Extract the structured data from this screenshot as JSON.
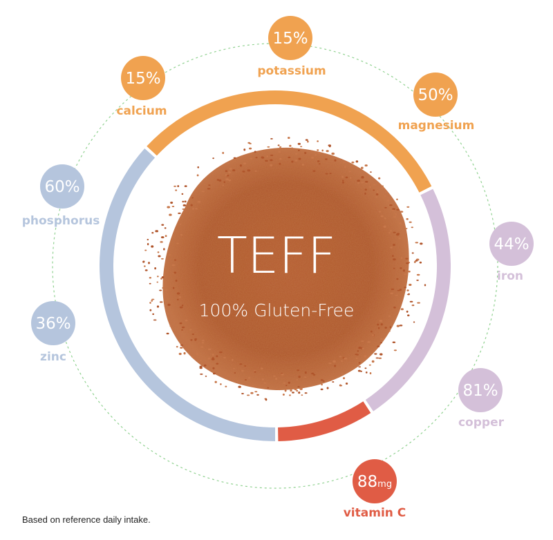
{
  "center": {
    "title": "TEFF",
    "subtitle": "100% Gluten-Free"
  },
  "nutrients": [
    {
      "id": "potassium",
      "value": "15%",
      "label": "potassium",
      "color": "#f0a250"
    },
    {
      "id": "magnesium",
      "value": "50%",
      "label": "magnesium",
      "color": "#f0a250"
    },
    {
      "id": "iron",
      "value": "44%",
      "label": "iron",
      "color": "#d4c0d9"
    },
    {
      "id": "copper",
      "value": "81%",
      "label": "copper",
      "color": "#d4c0d9"
    },
    {
      "id": "vitamin-c",
      "value": "88",
      "unit": "mg",
      "label": "vitamin C",
      "color": "#e05c45"
    },
    {
      "id": "zinc",
      "value": "36%",
      "label": "zinc",
      "color": "#b5c5dd"
    },
    {
      "id": "phosphorus",
      "value": "60%",
      "label": "phosphorus",
      "color": "#b5c5dd"
    },
    {
      "id": "calcium",
      "value": "15%",
      "label": "calcium",
      "color": "#f0a250"
    }
  ],
  "ring_colors": {
    "minerals_orange": "#f0a250",
    "minerals_lilac": "#d4c0d9",
    "vitamin_red": "#e05c45",
    "minerals_blue": "#b5c5dd",
    "grain": "#b5542c",
    "dashed_orbit": "#8fd18f"
  },
  "footnote": "Based on reference daily intake."
}
